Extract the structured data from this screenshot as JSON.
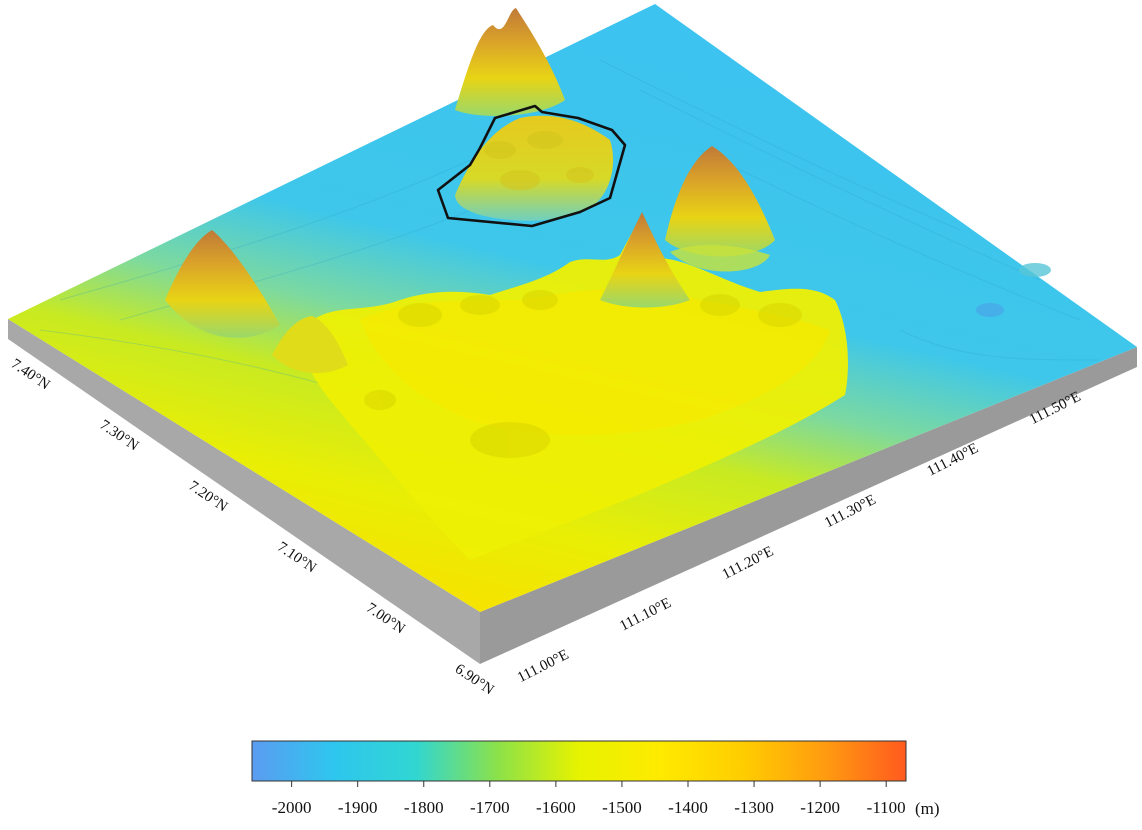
{
  "map": {
    "latitude_ticks": [
      "7.40°N",
      "7.30°N",
      "7.20°N",
      "7.10°N",
      "7.00°N",
      "6.90°N"
    ],
    "longitude_ticks": [
      "111.00°E",
      "111.10°E",
      "111.20°E",
      "111.30°E",
      "111.40°E",
      "111.50°E"
    ],
    "outlined_feature": "black polygon outline around the northern seamount"
  },
  "colorbar": {
    "ticks": [
      "-2000",
      "-1900",
      "-1800",
      "-1700",
      "-1600",
      "-1500",
      "-1400",
      "-1300",
      "-1200",
      "-1100"
    ],
    "unit": "(m)",
    "range": [
      -2060,
      -1070
    ],
    "colors": [
      "#5b9cf0",
      "#2ec6ee",
      "#31d6d2",
      "#8be14a",
      "#e7f300",
      "#ffea00",
      "#ffcd00",
      "#ff9c10",
      "#ff5a1e"
    ]
  },
  "colors": {
    "deep": "#3cc3ef",
    "mid": "#c8ea22",
    "shallow": "#f0e200",
    "peak": "#c9863a",
    "side": "#a5a5a5",
    "outline": "#111111"
  }
}
